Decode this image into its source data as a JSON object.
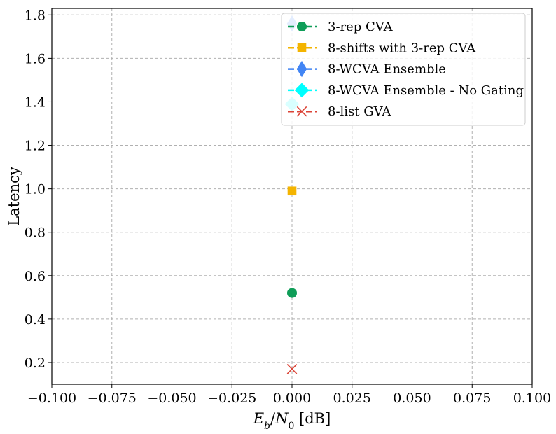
{
  "chart_data": {
    "type": "scatter",
    "xlabel": "E_b/N_0 [dB]",
    "ylabel": "Latency",
    "xlim": [
      -0.1,
      0.1
    ],
    "ylim": [
      0.1,
      1.83
    ],
    "xticks": [
      -0.1,
      -0.075,
      -0.05,
      -0.025,
      0.0,
      0.025,
      0.05,
      0.075,
      0.1
    ],
    "xtick_labels": [
      "−0.100",
      "−0.075",
      "−0.050",
      "−0.025",
      "0.000",
      "0.025",
      "0.050",
      "0.075",
      "0.100"
    ],
    "yticks": [
      0.2,
      0.4,
      0.6,
      0.8,
      1.0,
      1.2,
      1.4,
      1.6,
      1.8
    ],
    "ytick_labels": [
      "0.2",
      "0.4",
      "0.6",
      "0.8",
      "1.0",
      "1.2",
      "1.4",
      "1.6",
      "1.8"
    ],
    "grid": true,
    "legend_position": "top-right",
    "series": [
      {
        "name": "3-rep CVA",
        "marker": "circle",
        "color": "#0f9d58",
        "x": [
          0.0
        ],
        "y": [
          0.52
        ]
      },
      {
        "name": "8-shifts with 3-rep CVA",
        "marker": "square",
        "color": "#f4b400",
        "x": [
          0.0
        ],
        "y": [
          0.99
        ]
      },
      {
        "name": "8-WCVA Ensemble",
        "marker": "diamond",
        "color": "#4285f4",
        "x": [
          0.0
        ],
        "y": [
          1.76
        ]
      },
      {
        "name": "8-WCVA Ensemble - No Gating",
        "marker": "diamond-wide",
        "color": "#00ffff",
        "x": [
          0.0
        ],
        "y": [
          1.39
        ]
      },
      {
        "name": "8-list GVA",
        "marker": "x",
        "color": "#db4437",
        "x": [
          0.0
        ],
        "y": [
          0.17
        ]
      }
    ]
  }
}
